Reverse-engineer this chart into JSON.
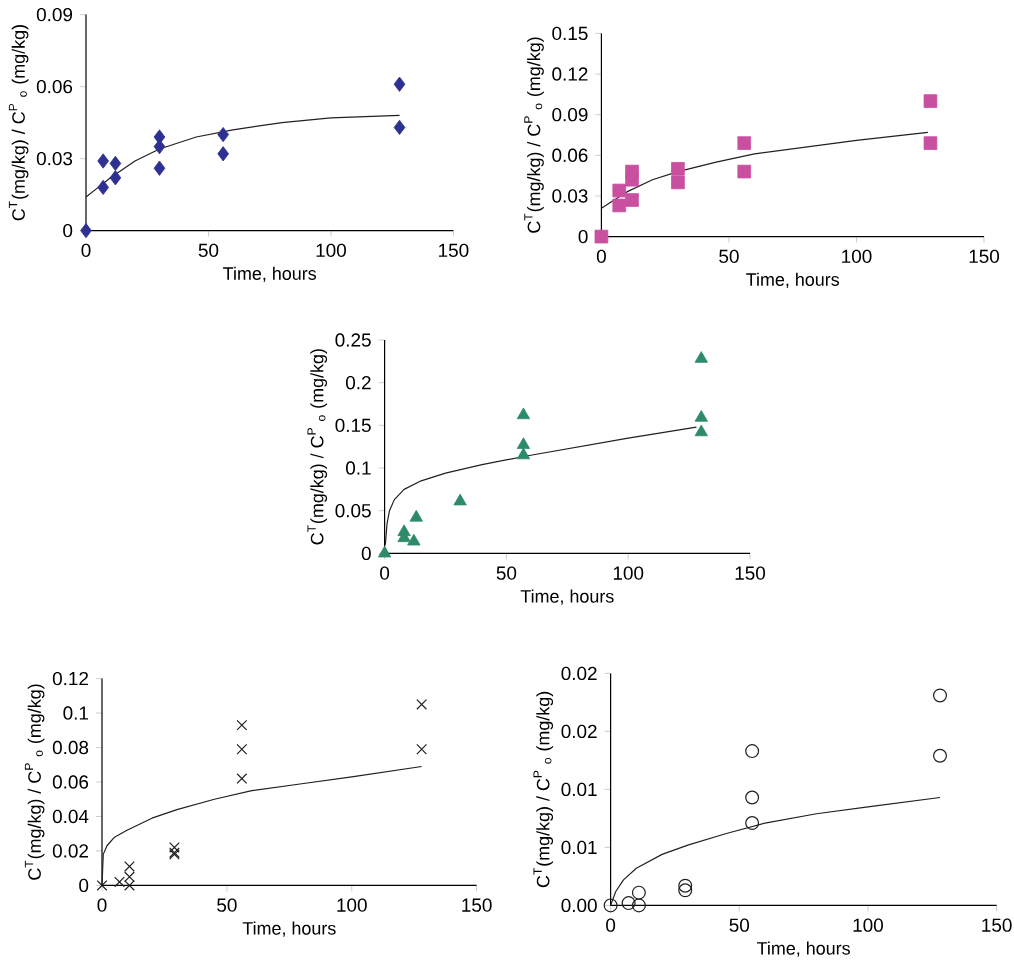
{
  "chart_data": [
    {
      "type": "scatter",
      "xlabel": "Time, hours",
      "ylabel": "C$^{T}$(mg/kg) /  C$^{P}$ $_{o}$ (mg/kg)",
      "xlim": [
        0,
        150
      ],
      "ylim": [
        0,
        0.09
      ],
      "xticks": [
        0,
        50,
        100,
        150
      ],
      "yticks": [
        0,
        0.03,
        0.06,
        0.09
      ],
      "series": [
        {
          "color": "#2e3192",
          "marker": "diamond",
          "x": [
            0,
            7,
            7,
            12,
            12,
            30,
            30,
            30,
            56,
            56,
            128,
            128
          ],
          "values": [
            0,
            0.029,
            0.018,
            0.028,
            0.022,
            0.039,
            0.035,
            0.026,
            0.04,
            0.032,
            0.061,
            0.043
          ]
        },
        {
          "type": "line",
          "color": "#231f20",
          "marker": "none",
          "x": [
            0,
            5,
            10,
            20,
            30,
            45,
            60,
            80,
            100,
            128
          ],
          "values": [
            0.014,
            0.018,
            0.022,
            0.029,
            0.034,
            0.039,
            0.042,
            0.045,
            0.047,
            0.048
          ]
        }
      ]
    },
    {
      "type": "scatter",
      "xlabel": "Time, hours",
      "ylabel": "C$^{T}$(mg/kg) /  C$^{P}$ $_{o}$ (mg/kg)",
      "xlim": [
        0,
        150
      ],
      "ylim": [
        0,
        0.15
      ],
      "xticks": [
        0,
        50,
        100,
        150
      ],
      "yticks": [
        0,
        0.03,
        0.06,
        0.09,
        0.12,
        0.15
      ],
      "series": [
        {
          "color": "#c9509f",
          "marker": "square",
          "x": [
            0,
            7,
            7,
            12,
            12,
            12,
            30,
            30,
            56,
            56,
            129,
            129
          ],
          "values": [
            0,
            0.034,
            0.023,
            0.048,
            0.042,
            0.027,
            0.05,
            0.04,
            0.069,
            0.048,
            0.1,
            0.069
          ]
        },
        {
          "type": "line",
          "color": "#231f20",
          "marker": "none",
          "x": [
            0,
            5,
            10,
            20,
            30,
            45,
            60,
            80,
            100,
            128
          ],
          "values": [
            0.021,
            0.027,
            0.033,
            0.042,
            0.048,
            0.055,
            0.061,
            0.066,
            0.071,
            0.077
          ]
        }
      ]
    },
    {
      "type": "scatter",
      "xlabel": "Time, hours",
      "ylabel": "C$^{T}$(mg/kg) /  C$^{P}$ $_{o}$ (mg/kg)",
      "xlim": [
        0,
        150
      ],
      "ylim": [
        0,
        0.25
      ],
      "xticks": [
        0,
        50,
        100,
        150
      ],
      "yticks": [
        0,
        0.05,
        0.1,
        0.15,
        0.2,
        0.25
      ],
      "series": [
        {
          "color": "#2e8b6a",
          "marker": "triangle",
          "x": [
            0,
            8,
            8,
            12,
            13,
            31,
            57,
            57,
            57,
            130,
            130,
            130
          ],
          "values": [
            0,
            0.025,
            0.018,
            0.014,
            0.042,
            0.061,
            0.162,
            0.127,
            0.115,
            0.228,
            0.159,
            0.142
          ]
        },
        {
          "type": "line",
          "color": "#231f20",
          "marker": "none",
          "x": [
            0.3,
            1,
            2,
            4,
            8,
            15,
            25,
            40,
            60,
            80,
            100,
            128
          ],
          "values": [
            0.01,
            0.035,
            0.05,
            0.063,
            0.075,
            0.085,
            0.094,
            0.104,
            0.115,
            0.125,
            0.135,
            0.148
          ]
        }
      ]
    },
    {
      "type": "scatter",
      "xlabel": "Time, hours",
      "ylabel": "C$^{T}$(mg/kg) /  C$^{P}$ $_{o}$ (mg/kg)",
      "xlim": [
        0,
        150
      ],
      "ylim": [
        0,
        0.12
      ],
      "xticks": [
        0,
        50,
        100,
        150
      ],
      "yticks": [
        0,
        0.02,
        0.04,
        0.06,
        0.08,
        0.1,
        0.12
      ],
      "series": [
        {
          "color": "#231f20",
          "marker": "cross",
          "x": [
            0,
            7,
            11,
            11,
            11,
            29,
            29,
            29,
            56,
            56,
            56,
            128,
            128
          ],
          "values": [
            0,
            0.002,
            0.011,
            0.005,
            0,
            0.022,
            0.019,
            0.018,
            0.093,
            0.079,
            0.062,
            0.105,
            0.079
          ]
        },
        {
          "type": "line",
          "color": "#231f20",
          "marker": "none",
          "x": [
            0,
            0.5,
            2,
            5,
            10,
            20,
            30,
            45,
            60,
            80,
            100,
            128
          ],
          "values": [
            0,
            0.018,
            0.023,
            0.028,
            0.032,
            0.039,
            0.044,
            0.05,
            0.055,
            0.059,
            0.063,
            0.069
          ]
        }
      ]
    },
    {
      "type": "scatter",
      "xlabel": "Time, hours",
      "ylabel": "C$^{T}$(mg/kg) /  C$^{P}$ $_{o}$ (mg/kg)",
      "xlim": [
        0,
        150
      ],
      "ylim": [
        0,
        0.02
      ],
      "xticks": [
        0,
        50,
        100,
        150
      ],
      "yticks": [
        {
          "value": 0,
          "label": "0.00"
        },
        {
          "value": 0.005,
          "label": "0.01"
        },
        {
          "value": 0.01,
          "label": "0.01"
        },
        {
          "value": 0.015,
          "label": "0.02"
        },
        {
          "value": 0.02,
          "label": "0.02"
        }
      ],
      "series": [
        {
          "color": "#231f20",
          "marker": "circle",
          "x": [
            0,
            7,
            11,
            11,
            29,
            29,
            55,
            55,
            55,
            128,
            128
          ],
          "values": [
            0,
            0.0002,
            0.0011,
            0,
            0.0017,
            0.0013,
            0.0133,
            0.0093,
            0.0071,
            0.0181,
            0.0129
          ]
        },
        {
          "type": "line",
          "color": "#231f20",
          "marker": "none",
          "x": [
            0,
            2,
            5,
            10,
            20,
            30,
            45,
            60,
            80,
            100,
            128
          ],
          "values": [
            0,
            0.0012,
            0.0022,
            0.0032,
            0.0044,
            0.0052,
            0.0062,
            0.0071,
            0.0079,
            0.0085,
            0.0093
          ]
        }
      ]
    }
  ]
}
